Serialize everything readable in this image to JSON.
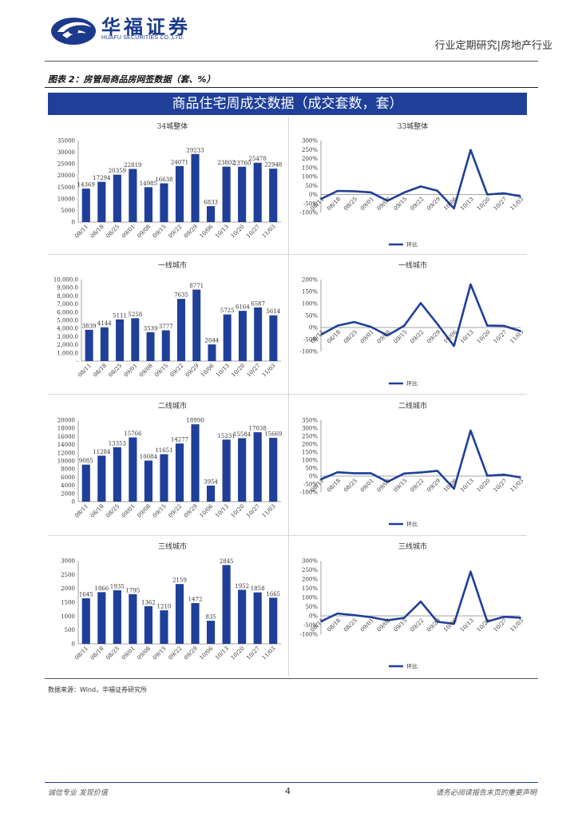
{
  "header": {
    "company_cn": "华福证券",
    "company_en": "HUAFU SECURITIES CO.,LTD.",
    "report_type": "行业定期研究|房地产行业"
  },
  "figure": {
    "title": "图表 2：房管局商品房网签数据（套、%）",
    "banner": "商品住宅周成交数据（成交套数，套）"
  },
  "legend_label": "环比",
  "source": "数据来源：Wind，华福证券研究所",
  "footer": {
    "left": "诚信专业  发现价值",
    "page": "4",
    "right": "请务必阅读报告末页的重要声明"
  },
  "colors": {
    "bar": "#1f3f99",
    "line": "#1f3f99",
    "banner": "#1f3f99"
  },
  "chart_data": [
    {
      "type": "bar",
      "title": "34城整体",
      "categories": [
        "08/11",
        "08/18",
        "08/25",
        "09/01",
        "09/08",
        "09/15",
        "09/22",
        "09/29",
        "10/06",
        "10/13",
        "10/20",
        "10/27",
        "11/03"
      ],
      "values": [
        14369,
        17294,
        20359,
        22819,
        14985,
        16638,
        24071,
        29233,
        6833,
        23802,
        23760,
        25478,
        22948
      ],
      "value_labels": [
        "14369",
        "17294",
        "20359",
        "22819",
        "14985",
        "16638",
        "24071",
        "29233",
        "6833",
        "23802",
        "23760",
        "25478",
        "22948"
      ],
      "ylim": [
        0,
        35000
      ],
      "yticks": [
        "0",
        "5000",
        "10000",
        "15000",
        "20000",
        "25000",
        "30000",
        "35000"
      ],
      "ytick_values": [
        0,
        5000,
        10000,
        15000,
        20000,
        25000,
        30000,
        35000
      ]
    },
    {
      "type": "line",
      "title": "33城整体",
      "categories": [
        "08/11",
        "08/18",
        "08/25",
        "09/01",
        "09/08",
        "09/15",
        "09/22",
        "09/29",
        "10/06",
        "10/13",
        "10/20",
        "10/27",
        "11/03"
      ],
      "values": [
        -25,
        20,
        18,
        12,
        -35,
        11,
        45,
        21,
        -77,
        248,
        0,
        7,
        -10
      ],
      "ylim": [
        -100,
        300
      ],
      "yticks": [
        "-100%",
        "-50%",
        "0%",
        "50%",
        "100%",
        "150%",
        "200%",
        "250%",
        "300%"
      ],
      "ytick_values": [
        -100,
        -50,
        0,
        50,
        100,
        150,
        200,
        250,
        300
      ],
      "legend": "环比"
    },
    {
      "type": "bar",
      "title": "一线城市",
      "categories": [
        "08/11",
        "08/18",
        "08/25",
        "09/01",
        "09/08",
        "09/15",
        "09/22",
        "09/29",
        "10/06",
        "10/13",
        "10/20",
        "10/27",
        "11/03"
      ],
      "values": [
        3839,
        4144,
        5111,
        5258,
        3539,
        3777,
        7635,
        8771,
        2044,
        5725,
        6164,
        6587,
        5614
      ],
      "value_labels": [
        "3839",
        "4144",
        "5111",
        "5258",
        "3539",
        "3777",
        "7635",
        "8771",
        "2044",
        "5725",
        "6164",
        "6587",
        "5614"
      ],
      "ylim": [
        0,
        10000
      ],
      "yticks": [
        "-",
        "1,000.0",
        "2,000.0",
        "3,000.0",
        "4,000.0",
        "5,000.0",
        "6,000.0",
        "7,000.0",
        "8,000.0",
        "9,000.0",
        "10,000.0"
      ],
      "ytick_values": [
        0,
        1000,
        2000,
        3000,
        4000,
        5000,
        6000,
        7000,
        8000,
        9000,
        10000
      ]
    },
    {
      "type": "line",
      "title": "一线城市",
      "categories": [
        "08/11",
        "08/18",
        "08/25",
        "09/01",
        "09/08",
        "09/15",
        "09/22",
        "09/29",
        "10/06",
        "10/13",
        "10/20",
        "10/27",
        "11/03"
      ],
      "values": [
        -30,
        8,
        23,
        3,
        -33,
        7,
        102,
        15,
        -77,
        180,
        8,
        7,
        -15
      ],
      "ylim": [
        -100,
        200
      ],
      "yticks": [
        "-100%",
        "-50%",
        "0%",
        "50%",
        "100%",
        "150%",
        "200%"
      ],
      "ytick_values": [
        -100,
        -50,
        0,
        50,
        100,
        150,
        200
      ],
      "legend": "环比"
    },
    {
      "type": "bar",
      "title": "二线城市",
      "categories": [
        "08/11",
        "08/18",
        "08/25",
        "09/01",
        "09/08",
        "09/15",
        "09/22",
        "09/29",
        "10/06",
        "10/13",
        "10/20",
        "10/27",
        "11/03"
      ],
      "values": [
        9085,
        11284,
        13353,
        15766,
        10084,
        11651,
        14277,
        18990,
        3954,
        15231,
        15584,
        17038,
        15669
      ],
      "value_labels": [
        "9085",
        "11284",
        "13353",
        "15766",
        "10084",
        "11651",
        "14277",
        "18990",
        "3954",
        "15231",
        "15584",
        "17038",
        "15669"
      ],
      "ylim": [
        0,
        20000
      ],
      "yticks": [
        "0",
        "2000",
        "4000",
        "6000",
        "8000",
        "10000",
        "12000",
        "14000",
        "16000",
        "18000",
        "20000"
      ],
      "ytick_values": [
        0,
        2000,
        4000,
        6000,
        8000,
        10000,
        12000,
        14000,
        16000,
        18000,
        20000
      ]
    },
    {
      "type": "line",
      "title": "二线城市",
      "categories": [
        "08/11",
        "08/18",
        "08/25",
        "09/01",
        "09/08",
        "09/15",
        "09/22",
        "09/29",
        "10/06",
        "10/13",
        "10/20",
        "10/27",
        "11/03"
      ],
      "values": [
        -20,
        24,
        18,
        18,
        -36,
        16,
        23,
        33,
        -79,
        285,
        2,
        9,
        -8
      ],
      "ylim": [
        -100,
        350
      ],
      "yticks": [
        "-100%",
        "-50%",
        "0%",
        "50%",
        "100%",
        "150%",
        "200%",
        "250%",
        "300%",
        "350%"
      ],
      "ytick_values": [
        -100,
        -50,
        0,
        50,
        100,
        150,
        200,
        250,
        300,
        350
      ],
      "legend": "环比"
    },
    {
      "type": "bar",
      "title": "三线城市",
      "categories": [
        "08/11",
        "08/18",
        "08/25",
        "09/01",
        "09/08",
        "09/15",
        "09/22",
        "09/29",
        "10/06",
        "10/13",
        "10/20",
        "10/27",
        "11/03"
      ],
      "values": [
        1645,
        1866,
        1935,
        1795,
        1362,
        1210,
        2159,
        1472,
        835,
        2845,
        1952,
        1858,
        1665
      ],
      "value_labels": [
        "1645",
        "1866",
        "1935",
        "1795",
        "1362",
        "1210",
        "2159",
        "1472",
        "835",
        "2845",
        "1952",
        "1858",
        "1665"
      ],
      "ylim": [
        0,
        3000
      ],
      "yticks": [
        "0",
        "500",
        "1000",
        "1500",
        "2000",
        "2500",
        "3000"
      ],
      "ytick_values": [
        0,
        500,
        1000,
        1500,
        2000,
        2500,
        3000
      ]
    },
    {
      "type": "line",
      "title": "三线城市",
      "categories": [
        "08/11",
        "08/18",
        "08/25",
        "09/01",
        "09/08",
        "09/15",
        "09/22",
        "09/29",
        "10/06",
        "10/13",
        "10/20",
        "10/27",
        "11/03"
      ],
      "values": [
        -30,
        13,
        4,
        -7,
        -24,
        -11,
        78,
        -32,
        -43,
        241,
        -31,
        -5,
        -10
      ],
      "ylim": [
        -100,
        300
      ],
      "yticks": [
        "-100%",
        "-50%",
        "0%",
        "50%",
        "100%",
        "150%",
        "200%",
        "250%",
        "300%"
      ],
      "ytick_values": [
        -100,
        -50,
        0,
        50,
        100,
        150,
        200,
        250,
        300
      ],
      "legend": "环比"
    }
  ]
}
